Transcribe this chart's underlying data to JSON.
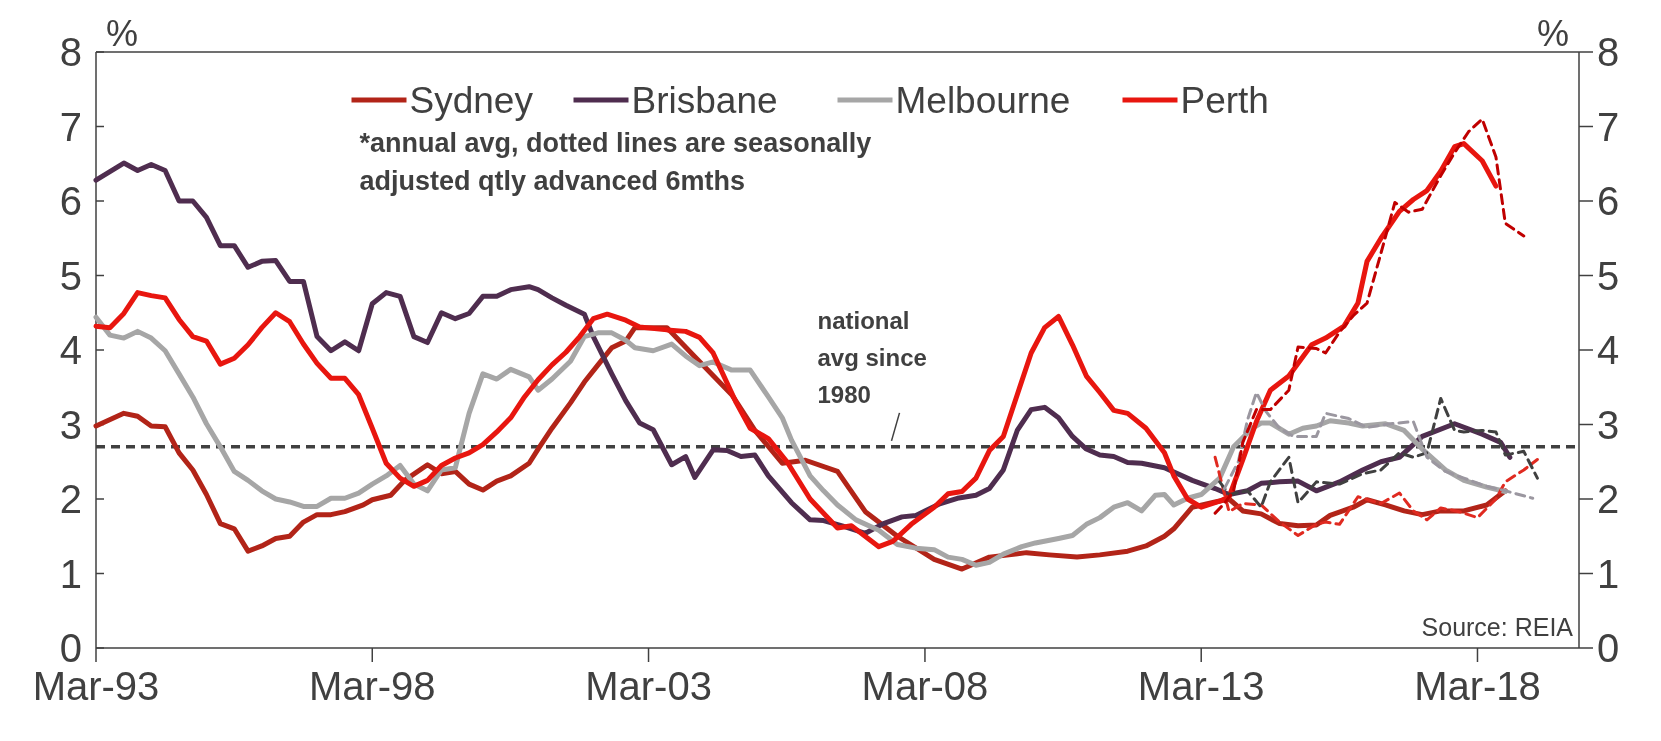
{
  "chart_data": {
    "type": "line",
    "ylabel": "%",
    "y2label": "%",
    "xlim": [
      "1993-03",
      "2020-01"
    ],
    "xticks": [
      {
        "value": "1993-03",
        "label": "Mar-93"
      },
      {
        "value": "1998-03",
        "label": "Mar-98"
      },
      {
        "value": "2003-03",
        "label": "Mar-03"
      },
      {
        "value": "2008-03",
        "label": "Mar-08"
      },
      {
        "value": "2013-03",
        "label": "Mar-13"
      },
      {
        "value": "2018-03",
        "label": "Mar-18"
      }
    ],
    "ylim": [
      0,
      8
    ],
    "yticks": [
      0,
      1,
      2,
      3,
      4,
      5,
      6,
      7,
      8
    ],
    "y2lim": [
      0,
      8
    ],
    "y2ticks": [
      0,
      1,
      2,
      3,
      4,
      5,
      6,
      7,
      8
    ],
    "grid": false,
    "legend": "top",
    "line_style": "solid",
    "marker": "none",
    "series": [
      {
        "name": "Sydney",
        "color": "#b22418",
        "x": [
          "1993-03",
          "1993-09",
          "1993-12",
          "1994-03",
          "1994-06",
          "1994-09",
          "1994-12",
          "1995-03",
          "1995-06",
          "1995-09",
          "1995-12",
          "1996-03",
          "1996-06",
          "1996-09",
          "1996-12",
          "1997-03",
          "1997-06",
          "1997-09",
          "1998-01",
          "1998-03",
          "1998-07",
          "1998-10",
          "1999-03",
          "1999-06",
          "1999-09",
          "1999-12",
          "2000-03",
          "2000-06",
          "2000-09",
          "2001-01",
          "2001-03",
          "2001-06",
          "2001-10",
          "2002-01",
          "2002-04",
          "2002-07",
          "2002-10",
          "2002-12",
          "2003-02",
          "2003-07",
          "2004-01",
          "2004-09",
          "2005-02",
          "2005-08",
          "2006-01",
          "2006-08",
          "2007-02",
          "2007-09",
          "2008-05",
          "2008-11",
          "2009-05",
          "2010-01",
          "2010-06",
          "2010-12",
          "2011-05",
          "2011-11",
          "2012-03",
          "2012-07",
          "2012-09",
          "2013-01",
          "2013-06",
          "2013-09",
          "2013-12",
          "2014-04",
          "2014-08",
          "2014-12",
          "2015-04",
          "2015-07",
          "2015-12",
          "2016-03",
          "2016-07",
          "2016-11",
          "2017-03",
          "2017-07",
          "2017-12",
          "2018-05",
          "2018-09"
        ],
        "values": [
          2.98,
          3.15,
          3.11,
          2.98,
          2.97,
          2.62,
          2.39,
          2.06,
          1.67,
          1.6,
          1.3,
          1.37,
          1.47,
          1.5,
          1.69,
          1.79,
          1.79,
          1.83,
          1.92,
          1.99,
          2.05,
          2.25,
          2.46,
          2.34,
          2.37,
          2.2,
          2.12,
          2.24,
          2.31,
          2.48,
          2.67,
          2.95,
          3.29,
          3.57,
          3.8,
          4.03,
          4.12,
          4.3,
          4.3,
          4.3,
          3.91,
          3.4,
          2.92,
          2.48,
          2.52,
          2.37,
          1.83,
          1.5,
          1.19,
          1.06,
          1.22,
          1.28,
          1.25,
          1.22,
          1.25,
          1.3,
          1.37,
          1.5,
          1.6,
          1.89,
          1.96,
          2.0,
          1.84,
          1.8,
          1.67,
          1.64,
          1.65,
          1.78,
          1.89,
          1.99,
          1.92,
          1.84,
          1.79,
          1.84,
          1.84,
          1.92,
          2.11
        ]
      },
      {
        "name": "Brisbane",
        "color": "#4f2d4f",
        "x": [
          "1993-03",
          "1993-09",
          "1993-12",
          "1994-03",
          "1994-06",
          "1994-09",
          "1994-12",
          "1995-03",
          "1995-06",
          "1995-09",
          "1995-12",
          "1996-03",
          "1996-06",
          "1996-09",
          "1996-12",
          "1997-03",
          "1997-06",
          "1997-09",
          "1997-12",
          "1998-03",
          "1998-06",
          "1998-09",
          "1998-12",
          "1999-03",
          "1999-06",
          "1999-09",
          "1999-12",
          "2000-03",
          "2000-06",
          "2000-09",
          "2001-01",
          "2001-03",
          "2001-06",
          "2001-09",
          "2002-01",
          "2002-03",
          "2002-07",
          "2002-10",
          "2003-01",
          "2003-04",
          "2003-08",
          "2003-11",
          "2004-01",
          "2004-05",
          "2004-08",
          "2004-11",
          "2005-02",
          "2005-05",
          "2005-10",
          "2006-02",
          "2006-05",
          "2006-09",
          "2007-02",
          "2007-06",
          "2007-10",
          "2008-01",
          "2008-06",
          "2008-10",
          "2009-02",
          "2009-05",
          "2009-08",
          "2009-11",
          "2010-02",
          "2010-05",
          "2010-08",
          "2010-11",
          "2011-02",
          "2011-05",
          "2011-08",
          "2011-11",
          "2012-02",
          "2012-07",
          "2013-01",
          "2013-06",
          "2013-09",
          "2014-01",
          "2014-04",
          "2014-08",
          "2014-12",
          "2015-04",
          "2015-09",
          "2016-02",
          "2016-06",
          "2016-10",
          "2017-03",
          "2017-10",
          "2018-04",
          "2018-08",
          "2018-10"
        ],
        "values": [
          6.28,
          6.51,
          6.41,
          6.49,
          6.41,
          6.0,
          6.0,
          5.78,
          5.4,
          5.4,
          5.11,
          5.19,
          5.2,
          4.92,
          4.92,
          4.18,
          3.99,
          4.11,
          3.99,
          4.62,
          4.77,
          4.72,
          4.18,
          4.1,
          4.5,
          4.42,
          4.49,
          4.72,
          4.72,
          4.81,
          4.85,
          4.81,
          4.7,
          4.6,
          4.48,
          4.18,
          3.68,
          3.32,
          3.02,
          2.93,
          2.46,
          2.57,
          2.29,
          2.66,
          2.65,
          2.57,
          2.59,
          2.31,
          1.95,
          1.72,
          1.71,
          1.64,
          1.54,
          1.67,
          1.76,
          1.78,
          1.93,
          2.01,
          2.05,
          2.14,
          2.39,
          2.92,
          3.2,
          3.23,
          3.09,
          2.84,
          2.67,
          2.59,
          2.57,
          2.49,
          2.48,
          2.42,
          2.25,
          2.14,
          2.06,
          2.11,
          2.21,
          2.23,
          2.24,
          2.11,
          2.23,
          2.39,
          2.5,
          2.56,
          2.84,
          3.01,
          2.87,
          2.76,
          2.56
        ]
      },
      {
        "name": "Melbourne",
        "color": "#a6a6a6",
        "x": [
          "1993-03",
          "1993-06",
          "1993-09",
          "1993-12",
          "1994-03",
          "1994-06",
          "1994-09",
          "1994-12",
          "1995-03",
          "1995-06",
          "1995-09",
          "1995-12",
          "1996-03",
          "1996-06",
          "1996-09",
          "1996-12",
          "1997-03",
          "1997-06",
          "1997-09",
          "1997-12",
          "1998-03",
          "1998-06",
          "1998-09",
          "1998-12",
          "1999-03",
          "1999-06",
          "1999-09",
          "1999-12",
          "2000-03",
          "2000-06",
          "2000-09",
          "2001-01",
          "2001-03",
          "2001-06",
          "2001-10",
          "2002-01",
          "2002-04",
          "2002-07",
          "2002-10",
          "2002-12",
          "2003-04",
          "2003-08",
          "2003-11",
          "2004-02",
          "2004-05",
          "2004-09",
          "2005-01",
          "2005-05",
          "2005-08",
          "2005-10",
          "2006-02",
          "2006-05",
          "2006-08",
          "2006-12",
          "2007-05",
          "2007-09",
          "2008-01",
          "2008-05",
          "2008-08",
          "2008-11",
          "2009-02",
          "2009-05",
          "2009-08",
          "2009-12",
          "2010-03",
          "2010-08",
          "2010-11",
          "2011-02",
          "2011-05",
          "2011-08",
          "2011-11",
          "2012-02",
          "2012-05",
          "2012-07",
          "2012-09",
          "2012-12",
          "2013-03",
          "2013-07",
          "2013-10",
          "2014-02",
          "2014-04",
          "2014-06",
          "2014-10",
          "2015-01",
          "2015-04",
          "2015-07",
          "2015-11",
          "2016-02",
          "2016-07",
          "2016-11",
          "2017-03",
          "2017-08",
          "2017-12",
          "2018-05",
          "2018-09"
        ],
        "values": [
          4.44,
          4.2,
          4.16,
          4.25,
          4.16,
          3.99,
          3.68,
          3.37,
          3.01,
          2.7,
          2.37,
          2.25,
          2.11,
          2.0,
          1.96,
          1.9,
          1.9,
          2.01,
          2.01,
          2.08,
          2.2,
          2.31,
          2.45,
          2.2,
          2.11,
          2.39,
          2.42,
          3.15,
          3.68,
          3.61,
          3.74,
          3.64,
          3.46,
          3.61,
          3.85,
          4.18,
          4.23,
          4.23,
          4.13,
          4.03,
          3.99,
          4.08,
          3.92,
          3.79,
          3.84,
          3.73,
          3.73,
          3.37,
          3.09,
          2.79,
          2.31,
          2.11,
          1.92,
          1.72,
          1.58,
          1.39,
          1.34,
          1.32,
          1.22,
          1.19,
          1.11,
          1.15,
          1.26,
          1.36,
          1.41,
          1.47,
          1.51,
          1.66,
          1.75,
          1.89,
          1.95,
          1.84,
          2.05,
          2.06,
          1.92,
          2.01,
          2.06,
          2.28,
          2.7,
          2.95,
          3.02,
          3.02,
          2.87,
          2.95,
          2.98,
          3.05,
          3.02,
          2.98,
          3.01,
          2.92,
          2.67,
          2.39,
          2.25,
          2.16,
          2.1
        ]
      },
      {
        "name": "Perth",
        "color": "#e8160f",
        "x": [
          "1993-03",
          "1993-06",
          "1993-09",
          "1993-12",
          "1994-03",
          "1994-06",
          "1994-09",
          "1994-12",
          "1995-03",
          "1995-06",
          "1995-09",
          "1995-12",
          "1996-03",
          "1996-06",
          "1996-09",
          "1996-12",
          "1997-03",
          "1997-06",
          "1997-09",
          "1997-12",
          "1998-03",
          "1998-06",
          "1998-09",
          "1998-12",
          "1999-03",
          "1999-06",
          "1999-09",
          "1999-12",
          "2000-03",
          "2000-06",
          "2000-09",
          "2000-12",
          "2001-03",
          "2001-06",
          "2001-09",
          "2001-12",
          "2002-03",
          "2002-06",
          "2002-10",
          "2003-01",
          "2003-07",
          "2003-11",
          "2004-02",
          "2004-05",
          "2004-10",
          "2005-01",
          "2005-05",
          "2005-09",
          "2006-02",
          "2006-08",
          "2006-11",
          "2007-05",
          "2007-08",
          "2007-12",
          "2008-05",
          "2008-08",
          "2008-11",
          "2009-02",
          "2009-05",
          "2009-08",
          "2009-11",
          "2010-02",
          "2010-05",
          "2010-08",
          "2010-11",
          "2011-02",
          "2011-05",
          "2011-08",
          "2011-11",
          "2012-03",
          "2012-07",
          "2012-09",
          "2012-12",
          "2013-03",
          "2013-07",
          "2013-09",
          "2013-12",
          "2014-03",
          "2014-06",
          "2014-10",
          "2015-03",
          "2015-06",
          "2015-10",
          "2016-01",
          "2016-03",
          "2016-06",
          "2016-10",
          "2017-01",
          "2017-04",
          "2017-07",
          "2017-10",
          "2017-12",
          "2018-04",
          "2018-07"
        ],
        "values": [
          4.32,
          4.3,
          4.49,
          4.77,
          4.73,
          4.7,
          4.41,
          4.18,
          4.12,
          3.81,
          3.89,
          4.07,
          4.3,
          4.5,
          4.38,
          4.08,
          3.82,
          3.62,
          3.62,
          3.4,
          2.95,
          2.48,
          2.28,
          2.17,
          2.25,
          2.45,
          2.55,
          2.62,
          2.73,
          2.9,
          3.09,
          3.37,
          3.6,
          3.8,
          3.97,
          4.18,
          4.42,
          4.48,
          4.4,
          4.31,
          4.27,
          4.25,
          4.17,
          3.96,
          3.29,
          2.95,
          2.81,
          2.5,
          2.0,
          1.61,
          1.64,
          1.36,
          1.43,
          1.66,
          1.89,
          2.07,
          2.1,
          2.28,
          2.65,
          2.84,
          3.4,
          3.96,
          4.3,
          4.45,
          4.07,
          3.65,
          3.43,
          3.19,
          3.15,
          2.95,
          2.62,
          2.31,
          2.0,
          1.89,
          1.97,
          2.03,
          2.53,
          3.04,
          3.46,
          3.65,
          4.07,
          4.16,
          4.32,
          4.63,
          5.19,
          5.5,
          5.86,
          6.02,
          6.14,
          6.4,
          6.73,
          6.77,
          6.54,
          6.2
        ]
      },
      {
        "color": "#e02a20",
        "line_style": "dashed",
        "x": [
          "2013-06",
          "2013-09",
          "2013-12",
          "2014-04",
          "2014-08",
          "2014-12",
          "2015-04",
          "2015-06",
          "2015-09",
          "2016-01",
          "2016-06",
          "2016-10",
          "2017-01",
          "2017-04",
          "2017-07",
          "2017-11",
          "2018-03",
          "2018-07",
          "2018-09",
          "2019-01",
          "2019-04"
        ],
        "values": [
          2.56,
          1.83,
          1.94,
          1.92,
          1.69,
          1.51,
          1.66,
          1.69,
          1.66,
          2.03,
          1.94,
          2.08,
          1.84,
          1.72,
          1.88,
          1.83,
          1.75,
          2.0,
          2.23,
          2.39,
          2.53
        ]
      },
      {
        "color": "#404040",
        "line_style": "dashed",
        "x": [
          "2013-07",
          "2013-09",
          "2014-01",
          "2014-04",
          "2014-06",
          "2014-10",
          "2014-12",
          "2015-04",
          "2015-09",
          "2016-02",
          "2016-06",
          "2016-10",
          "2017-01",
          "2017-04",
          "2017-07",
          "2017-10",
          "2017-12",
          "2018-04",
          "2018-07",
          "2018-09",
          "2019-01",
          "2019-04"
        ],
        "values": [
          2.23,
          2.06,
          2.11,
          1.89,
          2.23,
          2.56,
          1.95,
          2.23,
          2.2,
          2.34,
          2.39,
          2.62,
          2.56,
          2.62,
          3.35,
          2.92,
          2.9,
          2.92,
          2.9,
          2.59,
          2.64,
          2.28
        ]
      },
      {
        "color": "#9b97a0",
        "line_style": "dashed",
        "x": [
          "2013-08",
          "2013-11",
          "2014-01",
          "2014-03",
          "2014-05",
          "2014-08",
          "2014-11",
          "2015-04",
          "2015-06",
          "2015-11",
          "2016-03",
          "2016-08",
          "2017-01",
          "2017-04",
          "2017-08",
          "2017-12",
          "2018-05",
          "2018-09",
          "2019-03"
        ],
        "values": [
          2.14,
          2.5,
          3.06,
          3.43,
          3.18,
          2.95,
          2.84,
          2.84,
          3.15,
          3.08,
          2.96,
          3.01,
          3.04,
          2.56,
          2.37,
          2.28,
          2.17,
          2.11,
          2.01
        ]
      },
      {
        "color": "#c00000",
        "line_style": "dashed",
        "x": [
          "2013-06",
          "2013-08",
          "2013-10",
          "2013-12",
          "2014-03",
          "2014-06",
          "2014-10",
          "2014-12",
          "2015-04",
          "2015-06",
          "2015-09",
          "2015-12",
          "2016-03",
          "2016-06",
          "2016-09",
          "2016-12",
          "2017-03",
          "2017-07",
          "2017-10",
          "2018-01",
          "2018-04",
          "2018-07",
          "2018-09",
          "2019-01"
        ],
        "values": [
          1.81,
          1.94,
          2.11,
          2.76,
          3.2,
          3.2,
          3.46,
          4.04,
          4.02,
          3.96,
          4.24,
          4.46,
          4.63,
          5.3,
          5.98,
          5.85,
          5.89,
          6.34,
          6.65,
          6.93,
          7.1,
          6.59,
          5.7,
          5.53
        ]
      }
    ],
    "ref_lines": [
      {
        "axis": "y",
        "value": 2.7,
        "label": "national avg since 1980",
        "color": "#404040",
        "line_style": "dashed"
      }
    ],
    "annotations": [
      "*annual avg, dotted lines are seasonally adjusted qtly advanced 6mths",
      "Source: REIA"
    ]
  }
}
